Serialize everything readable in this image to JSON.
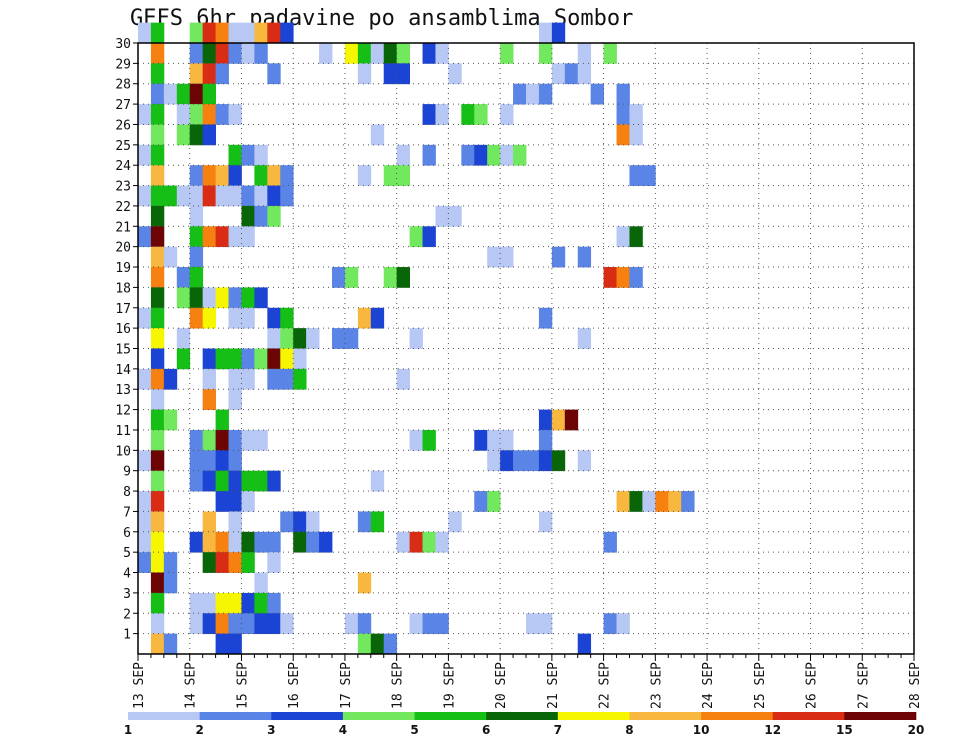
{
  "chart_data": {
    "type": "heatmap",
    "title": "GEFS 6hr padavine po ansamblima Sombor",
    "xlabel": "",
    "ylabel": "",
    "x_tick_labels": [
      "13 SEP",
      "14 SEP",
      "15 SEP",
      "16 SEP",
      "17 SEP",
      "18 SEP",
      "19 SEP",
      "20 SEP",
      "21 SEP",
      "22 SEP",
      "23 SEP",
      "24 SEP",
      "25 SEP",
      "26 SEP",
      "27 SEP",
      "28 SEP"
    ],
    "y_tick_labels": [
      "1",
      "2",
      "3",
      "4",
      "5",
      "6",
      "7",
      "8",
      "9",
      "10",
      "11",
      "12",
      "13",
      "14",
      "15",
      "16",
      "17",
      "18",
      "19",
      "20",
      "21",
      "22",
      "23",
      "24",
      "25",
      "26",
      "27",
      "28",
      "29",
      "30"
    ],
    "x_unit": "6-hour step (0 = 13 SEP 00Z)",
    "x_range": [
      0,
      60
    ],
    "y_range": [
      0,
      30
    ],
    "ensemble_members": 30,
    "colorbar": {
      "labels": [
        "1",
        "2",
        "3",
        "4",
        "5",
        "6",
        "7",
        "8",
        "10",
        "12",
        "15",
        "20"
      ],
      "colors": [
        "#b8c8f4",
        "#5a84e6",
        "#1c44d4",
        "#72e85e",
        "#16bf16",
        "#086608",
        "#f6f600",
        "#f8b840",
        "#f68010",
        "#d82c14",
        "#6c0404"
      ]
    },
    "grid": true,
    "cells": [
      [
        0,
        30,
        1
      ],
      [
        1,
        30,
        5
      ],
      [
        4,
        30,
        4
      ],
      [
        5,
        30,
        10
      ],
      [
        6,
        30,
        9
      ],
      [
        7,
        30,
        1
      ],
      [
        8,
        30,
        1
      ],
      [
        9,
        30,
        8
      ],
      [
        10,
        30,
        10
      ],
      [
        11,
        30,
        3
      ],
      [
        31,
        30,
        1
      ],
      [
        32,
        30,
        3
      ],
      [
        1,
        29,
        9
      ],
      [
        4,
        29,
        2
      ],
      [
        5,
        29,
        6
      ],
      [
        6,
        29,
        10
      ],
      [
        7,
        29,
        2
      ],
      [
        8,
        29,
        1
      ],
      [
        9,
        29,
        2
      ],
      [
        14,
        29,
        1
      ],
      [
        16,
        29,
        7
      ],
      [
        17,
        29,
        5
      ],
      [
        18,
        29,
        1
      ],
      [
        19,
        29,
        6
      ],
      [
        20,
        29,
        4
      ],
      [
        22,
        29,
        3
      ],
      [
        23,
        29,
        1
      ],
      [
        28,
        29,
        4
      ],
      [
        31,
        29,
        4
      ],
      [
        34,
        29,
        1
      ],
      [
        36,
        29,
        4
      ],
      [
        1,
        28,
        5
      ],
      [
        4,
        28,
        8
      ],
      [
        5,
        28,
        10
      ],
      [
        6,
        28,
        2
      ],
      [
        10,
        28,
        2
      ],
      [
        17,
        28,
        1
      ],
      [
        19,
        28,
        3
      ],
      [
        20,
        28,
        3
      ],
      [
        24,
        28,
        1
      ],
      [
        32,
        28,
        1
      ],
      [
        33,
        28,
        2
      ],
      [
        34,
        28,
        1
      ],
      [
        1,
        27,
        2
      ],
      [
        2,
        27,
        1
      ],
      [
        3,
        27,
        5
      ],
      [
        4,
        27,
        11
      ],
      [
        5,
        27,
        5
      ],
      [
        29,
        27,
        2
      ],
      [
        30,
        27,
        1
      ],
      [
        31,
        27,
        2
      ],
      [
        35,
        27,
        2
      ],
      [
        37,
        27,
        2
      ],
      [
        0,
        26,
        1
      ],
      [
        1,
        26,
        5
      ],
      [
        3,
        26,
        1
      ],
      [
        4,
        26,
        4
      ],
      [
        5,
        26,
        9
      ],
      [
        6,
        26,
        2
      ],
      [
        7,
        26,
        1
      ],
      [
        22,
        26,
        3
      ],
      [
        23,
        26,
        1
      ],
      [
        25,
        26,
        5
      ],
      [
        26,
        26,
        4
      ],
      [
        28,
        26,
        1
      ],
      [
        37,
        26,
        2
      ],
      [
        38,
        26,
        1
      ],
      [
        1,
        25,
        4
      ],
      [
        3,
        25,
        4
      ],
      [
        4,
        25,
        6
      ],
      [
        5,
        25,
        3
      ],
      [
        18,
        25,
        1
      ],
      [
        37,
        25,
        9
      ],
      [
        38,
        25,
        1
      ],
      [
        0,
        24,
        1
      ],
      [
        1,
        24,
        5
      ],
      [
        7,
        24,
        5
      ],
      [
        8,
        24,
        2
      ],
      [
        9,
        24,
        1
      ],
      [
        20,
        24,
        1
      ],
      [
        22,
        24,
        2
      ],
      [
        25,
        24,
        2
      ],
      [
        26,
        24,
        3
      ],
      [
        27,
        24,
        4
      ],
      [
        28,
        24,
        1
      ],
      [
        29,
        24,
        4
      ],
      [
        1,
        23,
        8
      ],
      [
        4,
        23,
        2
      ],
      [
        5,
        23,
        9
      ],
      [
        6,
        23,
        8
      ],
      [
        7,
        23,
        3
      ],
      [
        9,
        23,
        5
      ],
      [
        10,
        23,
        8
      ],
      [
        11,
        23,
        2
      ],
      [
        17,
        23,
        1
      ],
      [
        19,
        23,
        4
      ],
      [
        20,
        23,
        4
      ],
      [
        38,
        23,
        2
      ],
      [
        39,
        23,
        2
      ],
      [
        0,
        22,
        1
      ],
      [
        1,
        22,
        5
      ],
      [
        2,
        22,
        5
      ],
      [
        3,
        22,
        1
      ],
      [
        4,
        22,
        1
      ],
      [
        5,
        22,
        10
      ],
      [
        6,
        22,
        1
      ],
      [
        7,
        22,
        1
      ],
      [
        8,
        22,
        2
      ],
      [
        9,
        22,
        1
      ],
      [
        10,
        22,
        3
      ],
      [
        11,
        22,
        2
      ],
      [
        1,
        21,
        6
      ],
      [
        4,
        21,
        1
      ],
      [
        8,
        21,
        6
      ],
      [
        9,
        21,
        2
      ],
      [
        10,
        21,
        4
      ],
      [
        23,
        21,
        1
      ],
      [
        24,
        21,
        1
      ],
      [
        0,
        20,
        2
      ],
      [
        1,
        20,
        11
      ],
      [
        4,
        20,
        5
      ],
      [
        5,
        20,
        9
      ],
      [
        6,
        20,
        10
      ],
      [
        7,
        20,
        1
      ],
      [
        8,
        20,
        1
      ],
      [
        21,
        20,
        4
      ],
      [
        22,
        20,
        3
      ],
      [
        37,
        20,
        1
      ],
      [
        38,
        20,
        6
      ],
      [
        1,
        19,
        8
      ],
      [
        2,
        19,
        1
      ],
      [
        4,
        19,
        2
      ],
      [
        27,
        19,
        1
      ],
      [
        28,
        19,
        1
      ],
      [
        32,
        19,
        2
      ],
      [
        34,
        19,
        2
      ],
      [
        1,
        18,
        9
      ],
      [
        3,
        18,
        2
      ],
      [
        4,
        18,
        5
      ],
      [
        15,
        18,
        2
      ],
      [
        16,
        18,
        4
      ],
      [
        19,
        18,
        4
      ],
      [
        20,
        18,
        6
      ],
      [
        36,
        18,
        10
      ],
      [
        37,
        18,
        9
      ],
      [
        38,
        18,
        2
      ],
      [
        1,
        17,
        6
      ],
      [
        3,
        17,
        4
      ],
      [
        4,
        17,
        6
      ],
      [
        5,
        17,
        1
      ],
      [
        6,
        17,
        7
      ],
      [
        7,
        17,
        2
      ],
      [
        8,
        17,
        5
      ],
      [
        9,
        17,
        3
      ],
      [
        0,
        16,
        1
      ],
      [
        1,
        16,
        5
      ],
      [
        4,
        16,
        9
      ],
      [
        5,
        16,
        7
      ],
      [
        7,
        16,
        1
      ],
      [
        8,
        16,
        1
      ],
      [
        10,
        16,
        3
      ],
      [
        11,
        16,
        5
      ],
      [
        17,
        16,
        8
      ],
      [
        18,
        16,
        3
      ],
      [
        31,
        16,
        2
      ],
      [
        1,
        15,
        7
      ],
      [
        3,
        15,
        1
      ],
      [
        10,
        15,
        1
      ],
      [
        11,
        15,
        4
      ],
      [
        12,
        15,
        6
      ],
      [
        13,
        15,
        1
      ],
      [
        15,
        15,
        2
      ],
      [
        16,
        15,
        2
      ],
      [
        21,
        15,
        1
      ],
      [
        34,
        15,
        1
      ],
      [
        1,
        14,
        3
      ],
      [
        3,
        14,
        5
      ],
      [
        5,
        14,
        3
      ],
      [
        6,
        14,
        5
      ],
      [
        7,
        14,
        5
      ],
      [
        8,
        14,
        2
      ],
      [
        9,
        14,
        4
      ],
      [
        10,
        14,
        11
      ],
      [
        11,
        14,
        7
      ],
      [
        12,
        14,
        1
      ],
      [
        0,
        13,
        1
      ],
      [
        1,
        13,
        9
      ],
      [
        2,
        13,
        3
      ],
      [
        5,
        13,
        1
      ],
      [
        7,
        13,
        1
      ],
      [
        8,
        13,
        1
      ],
      [
        10,
        13,
        2
      ],
      [
        11,
        13,
        2
      ],
      [
        12,
        13,
        5
      ],
      [
        20,
        13,
        1
      ],
      [
        1,
        12,
        1
      ],
      [
        5,
        12,
        9
      ],
      [
        7,
        12,
        1
      ],
      [
        1,
        11,
        5
      ],
      [
        2,
        11,
        4
      ],
      [
        6,
        11,
        5
      ],
      [
        31,
        11,
        3
      ],
      [
        32,
        11,
        8
      ],
      [
        33,
        11,
        11
      ],
      [
        1,
        10,
        4
      ],
      [
        4,
        10,
        2
      ],
      [
        5,
        10,
        4
      ],
      [
        6,
        10,
        11
      ],
      [
        7,
        10,
        2
      ],
      [
        8,
        10,
        1
      ],
      [
        9,
        10,
        1
      ],
      [
        21,
        10,
        1
      ],
      [
        22,
        10,
        5
      ],
      [
        26,
        10,
        3
      ],
      [
        27,
        10,
        1
      ],
      [
        28,
        10,
        1
      ],
      [
        31,
        10,
        2
      ],
      [
        0,
        9,
        1
      ],
      [
        1,
        9,
        11
      ],
      [
        4,
        9,
        2
      ],
      [
        5,
        9,
        2
      ],
      [
        6,
        9,
        3
      ],
      [
        7,
        9,
        2
      ],
      [
        27,
        9,
        1
      ],
      [
        28,
        9,
        3
      ],
      [
        29,
        9,
        2
      ],
      [
        30,
        9,
        2
      ],
      [
        31,
        9,
        3
      ],
      [
        32,
        9,
        6
      ],
      [
        34,
        9,
        1
      ],
      [
        1,
        8,
        4
      ],
      [
        4,
        8,
        2
      ],
      [
        5,
        8,
        3
      ],
      [
        6,
        8,
        5
      ],
      [
        7,
        8,
        3
      ],
      [
        8,
        8,
        5
      ],
      [
        9,
        8,
        5
      ],
      [
        10,
        8,
        3
      ],
      [
        18,
        8,
        1
      ],
      [
        0,
        7,
        1
      ],
      [
        1,
        7,
        10
      ],
      [
        6,
        7,
        3
      ],
      [
        7,
        7,
        3
      ],
      [
        8,
        7,
        1
      ],
      [
        26,
        7,
        2
      ],
      [
        27,
        7,
        4
      ],
      [
        37,
        7,
        8
      ],
      [
        38,
        7,
        6
      ],
      [
        39,
        7,
        1
      ],
      [
        40,
        7,
        9
      ],
      [
        41,
        7,
        8
      ],
      [
        42,
        7,
        2
      ],
      [
        0,
        6,
        1
      ],
      [
        1,
        6,
        8
      ],
      [
        5,
        6,
        8
      ],
      [
        7,
        6,
        1
      ],
      [
        11,
        6,
        2
      ],
      [
        12,
        6,
        3
      ],
      [
        13,
        6,
        1
      ],
      [
        17,
        6,
        2
      ],
      [
        18,
        6,
        5
      ],
      [
        24,
        6,
        1
      ],
      [
        31,
        6,
        1
      ],
      [
        0,
        5,
        1
      ],
      [
        1,
        5,
        7
      ],
      [
        4,
        5,
        3
      ],
      [
        5,
        5,
        8
      ],
      [
        6,
        5,
        9
      ],
      [
        7,
        5,
        1
      ],
      [
        8,
        5,
        6
      ],
      [
        9,
        5,
        2
      ],
      [
        10,
        5,
        2
      ],
      [
        12,
        5,
        6
      ],
      [
        13,
        5,
        2
      ],
      [
        14,
        5,
        3
      ],
      [
        20,
        5,
        1
      ],
      [
        21,
        5,
        10
      ],
      [
        22,
        5,
        4
      ],
      [
        23,
        5,
        1
      ],
      [
        36,
        5,
        2
      ],
      [
        0,
        4,
        2
      ],
      [
        1,
        4,
        7
      ],
      [
        2,
        4,
        2
      ],
      [
        5,
        4,
        6
      ],
      [
        6,
        4,
        10
      ],
      [
        7,
        4,
        9
      ],
      [
        8,
        4,
        5
      ],
      [
        10,
        4,
        1
      ],
      [
        1,
        3,
        11
      ],
      [
        2,
        3,
        2
      ],
      [
        9,
        3,
        1
      ],
      [
        17,
        3,
        8
      ],
      [
        1,
        2,
        5
      ],
      [
        4,
        2,
        1
      ],
      [
        5,
        2,
        1
      ],
      [
        6,
        2,
        7
      ],
      [
        7,
        2,
        7
      ],
      [
        8,
        2,
        3
      ],
      [
        9,
        2,
        5
      ],
      [
        10,
        2,
        2
      ],
      [
        1,
        1,
        1
      ],
      [
        4,
        1,
        1
      ],
      [
        5,
        1,
        3
      ],
      [
        6,
        1,
        9
      ],
      [
        7,
        1,
        2
      ],
      [
        8,
        1,
        2
      ],
      [
        9,
        1,
        3
      ],
      [
        10,
        1,
        3
      ],
      [
        11,
        1,
        1
      ],
      [
        16,
        1,
        1
      ],
      [
        17,
        1,
        2
      ],
      [
        21,
        1,
        1
      ],
      [
        22,
        1,
        2
      ],
      [
        23,
        1,
        2
      ],
      [
        30,
        1,
        1
      ],
      [
        31,
        1,
        1
      ],
      [
        36,
        1,
        2
      ],
      [
        37,
        1,
        1
      ],
      [
        1,
        0,
        8
      ],
      [
        2,
        0,
        2
      ],
      [
        6,
        0,
        3
      ],
      [
        7,
        0,
        3
      ],
      [
        17,
        0,
        4
      ],
      [
        18,
        0,
        6
      ],
      [
        19,
        0,
        2
      ],
      [
        34,
        0,
        3
      ]
    ]
  }
}
